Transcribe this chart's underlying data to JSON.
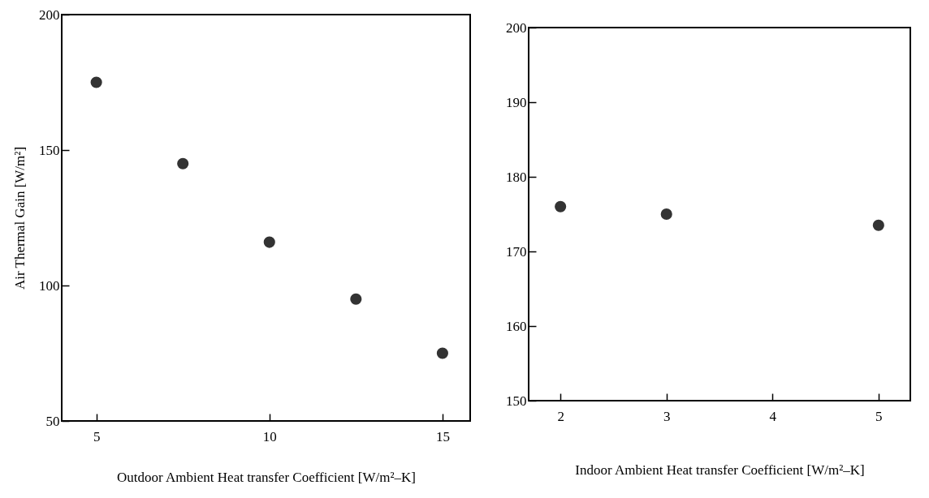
{
  "chart_data": [
    {
      "type": "scatter",
      "xlabel": "Outdoor Ambient Heat transfer Coefficient [W/m²–K]",
      "ylabel": "Air Thermal Gain [W/m²]",
      "x": [
        5,
        7.5,
        10,
        12.5,
        15
      ],
      "series": [
        {
          "color": "#333333",
          "values": [
            175,
            145,
            116,
            95,
            75
          ]
        }
      ],
      "xlim": [
        4,
        15.8
      ],
      "xticks": [
        5,
        10,
        15
      ],
      "ylim": [
        50,
        200
      ],
      "yticks": [
        50,
        100,
        150,
        200
      ],
      "marker": "circle"
    },
    {
      "type": "scatter",
      "xlabel": "Indoor Ambient Heat transfer Coefficient [W/m²–K]",
      "x": [
        2,
        3,
        5
      ],
      "series": [
        {
          "color": "#333333",
          "values": [
            176,
            175,
            173.5
          ]
        }
      ],
      "xlim": [
        1.7,
        5.3
      ],
      "xticks": [
        2,
        3,
        4,
        5
      ],
      "ylim": [
        150,
        200
      ],
      "yticks": [
        150,
        160,
        170,
        180,
        190,
        200
      ],
      "marker": "circle"
    }
  ]
}
